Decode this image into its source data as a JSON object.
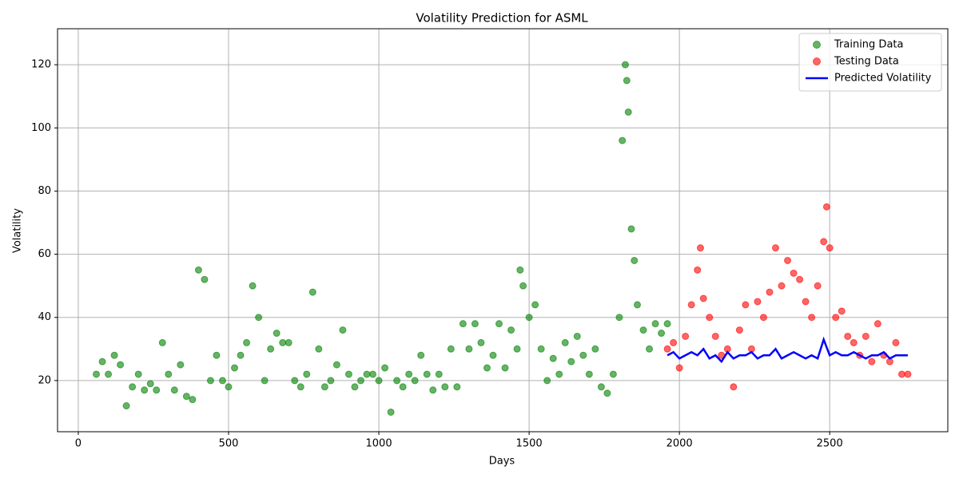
{
  "chart_data": {
    "type": "scatter_line",
    "title": "Volatility Prediction for ASML",
    "x_label": "Days",
    "y_label": "Volatility",
    "xlim": [
      -69,
      2893
    ],
    "ylim": [
      3.8,
      131.4
    ],
    "xticks": [
      0,
      500,
      1000,
      1500,
      2000,
      2500
    ],
    "yticks": [
      20,
      40,
      60,
      80,
      100,
      120
    ],
    "grid": true,
    "legend": "upper right",
    "series": [
      {
        "name": "Training Data",
        "kind": "scatter",
        "color": "#008000",
        "x": [
          60,
          80,
          100,
          120,
          140,
          160,
          180,
          200,
          220,
          240,
          260,
          280,
          300,
          320,
          340,
          360,
          380,
          400,
          420,
          440,
          460,
          480,
          500,
          520,
          540,
          560,
          580,
          600,
          620,
          640,
          660,
          680,
          700,
          720,
          740,
          760,
          780,
          800,
          820,
          840,
          860,
          880,
          900,
          920,
          940,
          960,
          980,
          1000,
          1020,
          1040,
          1060,
          1080,
          1100,
          1120,
          1140,
          1160,
          1180,
          1200,
          1220,
          1240,
          1260,
          1280,
          1300,
          1320,
          1340,
          1360,
          1380,
          1400,
          1420,
          1440,
          1460,
          1470,
          1480,
          1500,
          1520,
          1540,
          1560,
          1580,
          1600,
          1620,
          1640,
          1660,
          1680,
          1700,
          1720,
          1740,
          1760,
          1780,
          1800,
          1810,
          1820,
          1825,
          1830,
          1840,
          1850,
          1860,
          1880,
          1900,
          1920,
          1940,
          1960
        ],
        "values": [
          22,
          26,
          22,
          28,
          25,
          12,
          18,
          22,
          17,
          19,
          17,
          32,
          22,
          17,
          25,
          15,
          14,
          55,
          52,
          20,
          28,
          20,
          18,
          24,
          28,
          32,
          50,
          40,
          20,
          30,
          35,
          32,
          32,
          20,
          18,
          22,
          48,
          30,
          18,
          20,
          25,
          36,
          22,
          18,
          20,
          22,
          22,
          20,
          24,
          10,
          20,
          18,
          22,
          20,
          28,
          22,
          17,
          22,
          18,
          30,
          18,
          38,
          30,
          38,
          32,
          24,
          28,
          38,
          24,
          36,
          30,
          55,
          50,
          40,
          44,
          30,
          20,
          27,
          22,
          32,
          26,
          34,
          28,
          22,
          30,
          18,
          16,
          22,
          40,
          96,
          120,
          115,
          105,
          68,
          58,
          44,
          36,
          30,
          38,
          35,
          38
        ]
      },
      {
        "name": "Testing Data",
        "kind": "scatter",
        "color": "#ff0000",
        "x": [
          1960,
          1980,
          2000,
          2020,
          2040,
          2060,
          2070,
          2080,
          2100,
          2120,
          2140,
          2160,
          2180,
          2200,
          2220,
          2240,
          2260,
          2280,
          2300,
          2320,
          2340,
          2360,
          2380,
          2400,
          2420,
          2440,
          2460,
          2480,
          2490,
          2500,
          2520,
          2540,
          2560,
          2580,
          2600,
          2620,
          2640,
          2660,
          2680,
          2700,
          2720,
          2740,
          2760
        ],
        "values": [
          30,
          32,
          24,
          34,
          44,
          55,
          62,
          46,
          40,
          34,
          28,
          30,
          18,
          36,
          44,
          30,
          45,
          40,
          48,
          62,
          50,
          58,
          54,
          52,
          45,
          40,
          50,
          64,
          75,
          62,
          40,
          42,
          34,
          32,
          28,
          34,
          26,
          38,
          28,
          26,
          32,
          22,
          22
        ]
      },
      {
        "name": "Predicted Volatility",
        "kind": "line",
        "color": "#0000ff",
        "x": [
          1960,
          1980,
          2000,
          2020,
          2040,
          2060,
          2080,
          2100,
          2120,
          2140,
          2160,
          2180,
          2200,
          2220,
          2240,
          2260,
          2280,
          2300,
          2320,
          2340,
          2360,
          2380,
          2400,
          2420,
          2440,
          2460,
          2480,
          2500,
          2520,
          2540,
          2560,
          2580,
          2600,
          2620,
          2640,
          2660,
          2680,
          2700,
          2720,
          2740,
          2760
        ],
        "values": [
          28,
          29,
          27,
          28,
          29,
          28,
          30,
          27,
          28,
          26,
          29,
          27,
          28,
          28,
          29,
          27,
          28,
          28,
          30,
          27,
          28,
          29,
          28,
          27,
          28,
          27,
          33,
          28,
          29,
          28,
          28,
          29,
          28,
          27,
          28,
          28,
          29,
          27,
          28,
          28,
          28
        ]
      }
    ]
  }
}
